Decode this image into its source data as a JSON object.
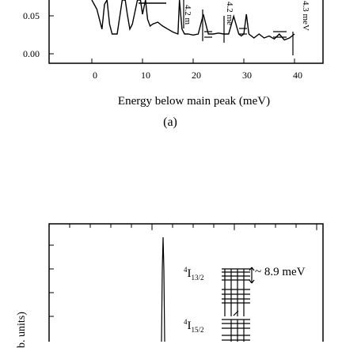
{
  "chart_data": [
    {
      "type": "line",
      "panel_label": "(a)",
      "xlabel": "Energy below main peak (meV)",
      "ylabel": "",
      "xlim": [
        0,
        40
      ],
      "ylim": [
        0,
        0.08
      ],
      "x_ticks": [
        "0",
        "10",
        "20",
        "30",
        "40"
      ],
      "y_ticks": [
        "0.00",
        "0.05"
      ],
      "series": [
        {
          "x": [
            0,
            1,
            2,
            2.5,
            3,
            3.5,
            4,
            5,
            6,
            6.6,
            7,
            7.5,
            8,
            9,
            9.6,
            10,
            10.6,
            11,
            11.5,
            12,
            13,
            14,
            15,
            16,
            17,
            17.3,
            17.8,
            18.3,
            19,
            20,
            21,
            22,
            23,
            24,
            25,
            26,
            27,
            28,
            29,
            29.5,
            30,
            30.5,
            31,
            32,
            33,
            34,
            35,
            36,
            37,
            38,
            39,
            40
          ],
          "y": [
            0.07,
            0.045,
            0.025,
            0.05,
            0.085,
            0.03,
            0.02,
            0.02,
            0.06,
            0.09,
            0.04,
            0.025,
            0.03,
            0.06,
            0.09,
            0.04,
            0.09,
            0.035,
            0.028,
            0.03,
            0.032,
            0.028,
            0.025,
            0.022,
            0.02,
            0.085,
            0.025,
            0.02,
            0.02,
            0.019,
            0.02,
            0.04,
            0.02,
            0.02,
            0.021,
            0.02,
            0.02,
            0.038,
            0.02,
            0.018,
            0.02,
            0.04,
            0.02,
            0.016,
            0.02,
            0.016,
            0.018,
            0.015,
            0.02,
            0.014,
            0.016,
            0.02
          ]
        }
      ],
      "annotations": [
        "4.2 m",
        "4.2 me",
        "4.3 meV"
      ],
      "grid": false
    },
    {
      "type": "line",
      "ylabel": "b. units)",
      "annotations": [
        "~ 8.9 meV"
      ],
      "level_labels": [
        {
          "sup": "4",
          "main": "I",
          "sub": "13/2"
        },
        {
          "sup": "4",
          "main": "I",
          "sub": "15/2"
        }
      ]
    }
  ]
}
